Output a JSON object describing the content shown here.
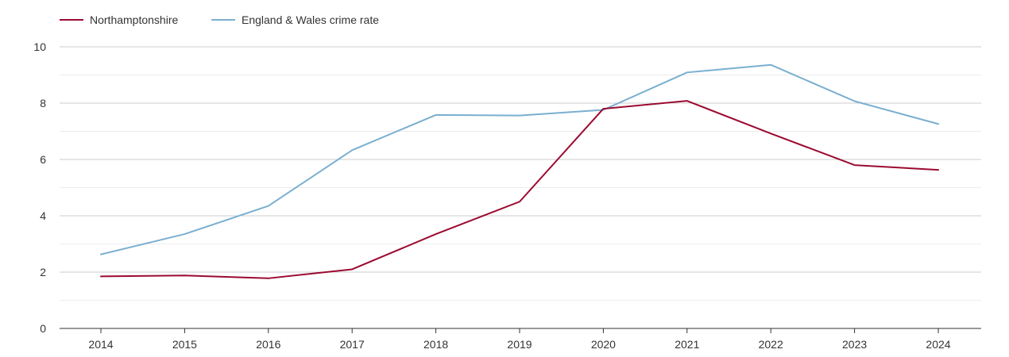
{
  "chart_data": {
    "type": "line",
    "x": [
      2014,
      2015,
      2016,
      2017,
      2018,
      2019,
      2020,
      2021,
      2022,
      2023,
      2024
    ],
    "x_tick_labels": [
      "2014",
      "2015",
      "2016",
      "2017",
      "2018",
      "2019",
      "2020",
      "2021",
      "2022",
      "2023",
      "2024"
    ],
    "series": [
      {
        "name": "Northamptonshire",
        "color": "#9b0a30",
        "values": [
          1.85,
          1.88,
          1.78,
          2.1,
          3.35,
          4.5,
          7.8,
          8.08,
          6.92,
          5.8,
          5.63
        ]
      },
      {
        "name": "England & Wales crime rate",
        "color": "#7aafd0",
        "values": [
          2.63,
          3.35,
          4.35,
          6.33,
          7.58,
          7.56,
          7.76,
          9.09,
          9.36,
          8.07,
          7.26
        ]
      }
    ],
    "ylim": [
      0,
      10
    ],
    "y_ticks": [
      0,
      2,
      4,
      6,
      8,
      10
    ],
    "y_minor_gridlines": [
      1,
      3,
      5,
      7,
      9
    ],
    "grid": true,
    "legend_position": "top-left",
    "title": "",
    "xlabel": "",
    "ylabel": ""
  }
}
